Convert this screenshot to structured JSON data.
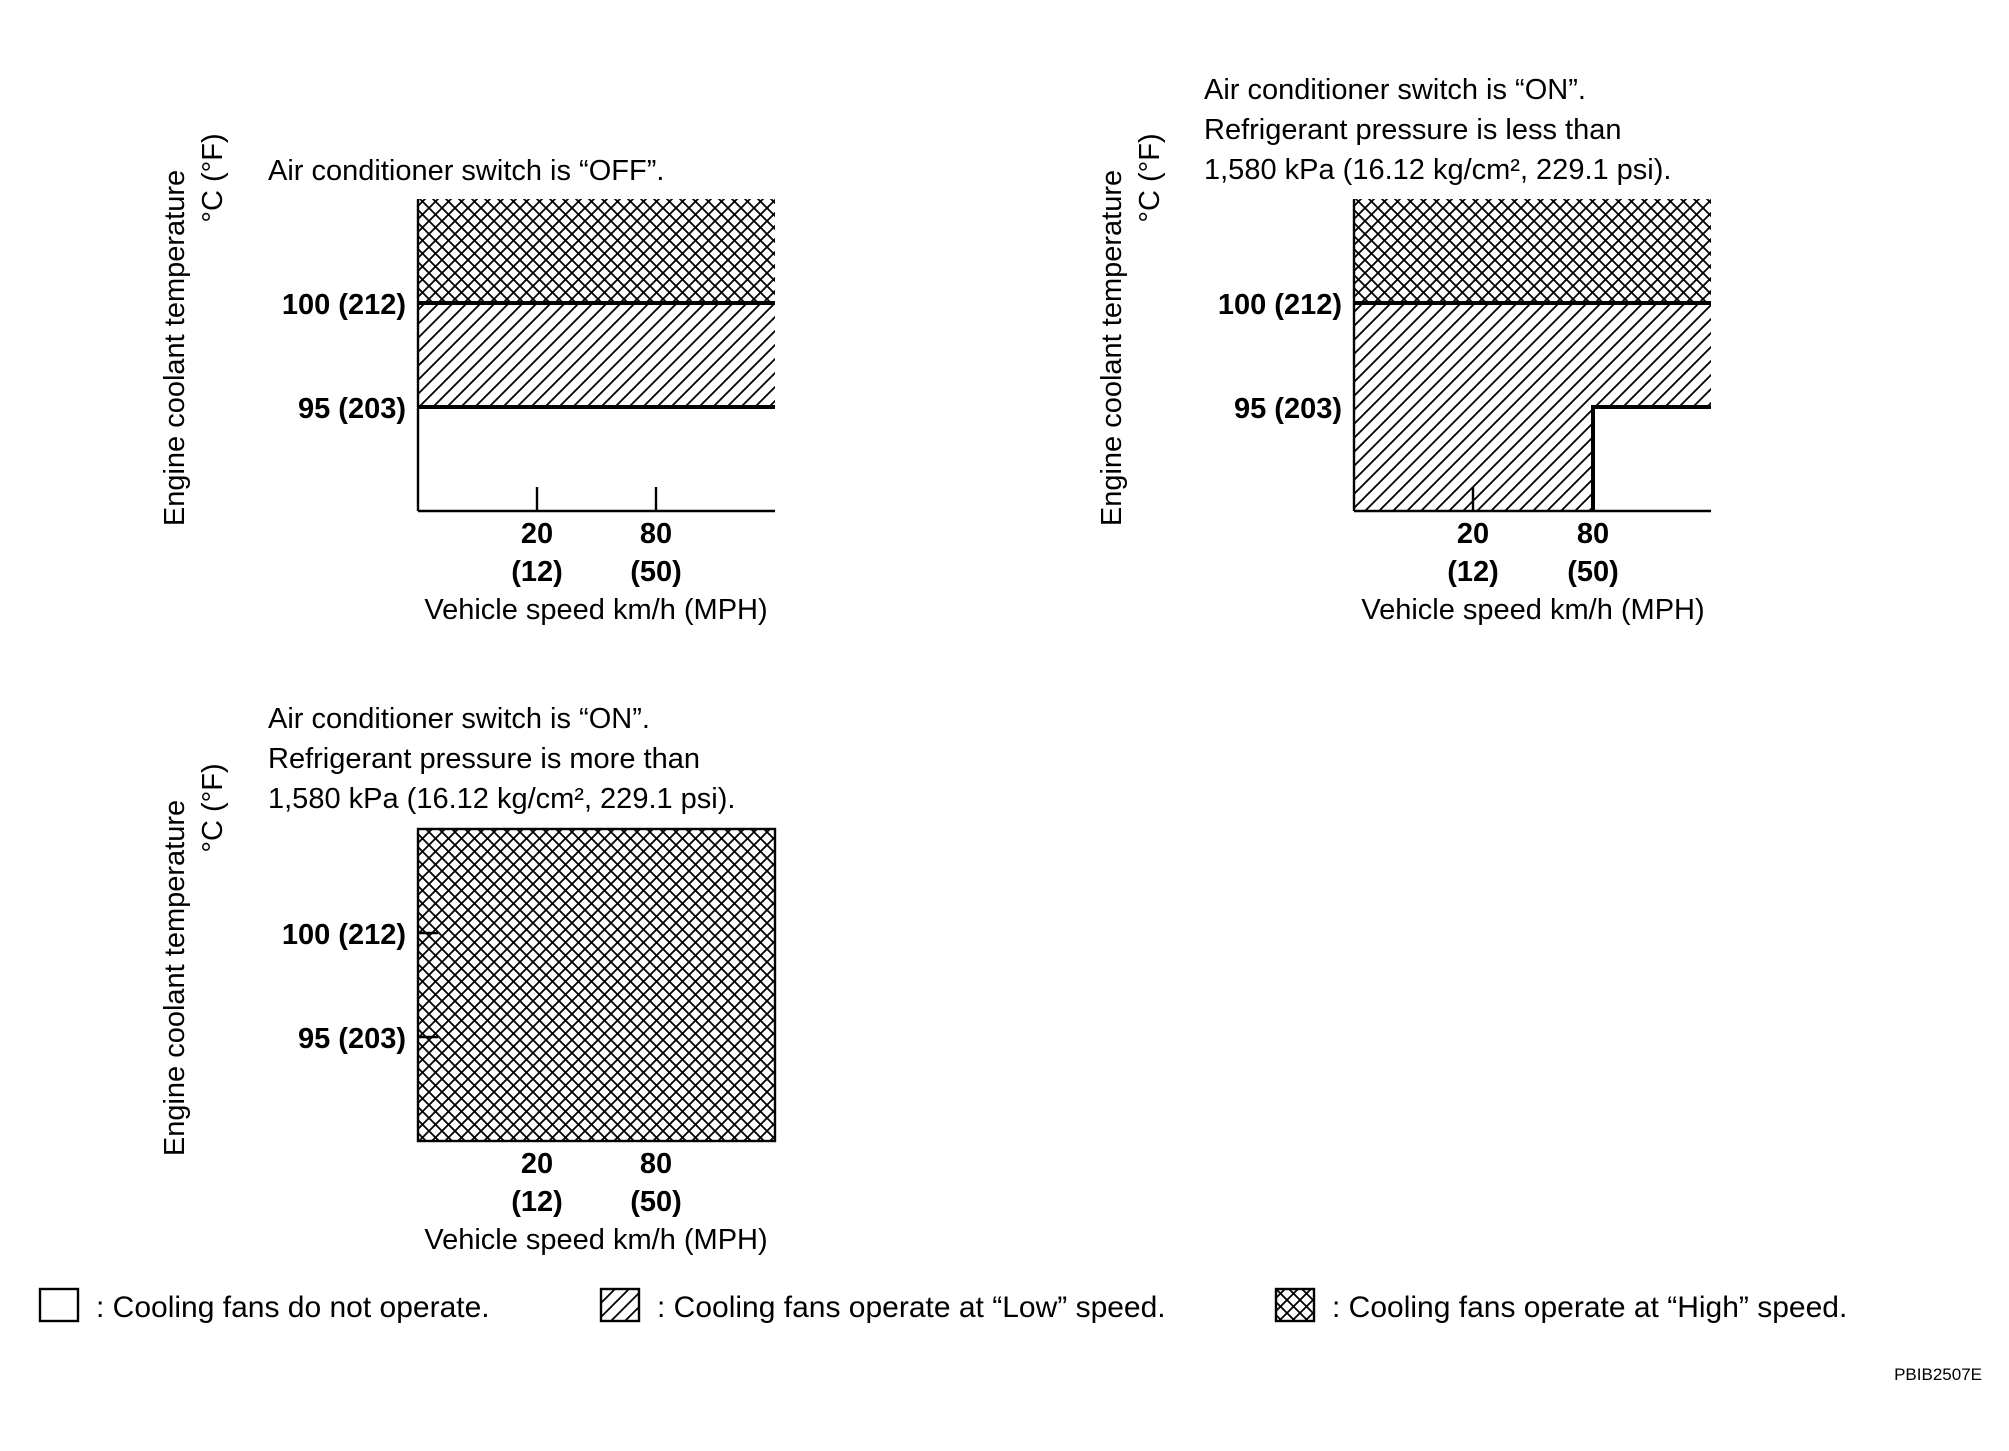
{
  "charts": [
    {
      "caption_lines": [
        "Air conditioner switch is “OFF”."
      ],
      "y_title": "Engine coolant temperature",
      "y_unit": "°C (°F)",
      "y_ticks": [
        "100 (212)",
        "95 (203)"
      ],
      "x_ticks": [
        {
          "value": "20",
          "mph": "(12)"
        },
        {
          "value": "80",
          "mph": "(50)"
        }
      ],
      "x_title": "Vehicle speed km/h (MPH)",
      "regions": [
        {
          "from_temp": 100,
          "to_temp": "max",
          "speed_from": 0,
          "speed_to": "max",
          "fan": "High"
        },
        {
          "from_temp": 95,
          "to_temp": 100,
          "speed_from": 0,
          "speed_to": "max",
          "fan": "Low"
        },
        {
          "from_temp": "min",
          "to_temp": 95,
          "speed_from": 0,
          "speed_to": "max",
          "fan": "Off"
        }
      ]
    },
    {
      "caption_lines": [
        "Air conditioner switch is “ON”.",
        "Refrigerant pressure is less than",
        "1,580 kPa (16.12 kg/cm², 229.1 psi)."
      ],
      "y_title": "Engine coolant temperature",
      "y_unit": "°C (°F)",
      "y_ticks": [
        "100 (212)",
        "95 (203)"
      ],
      "x_ticks": [
        {
          "value": "20",
          "mph": "(12)"
        },
        {
          "value": "80",
          "mph": "(50)"
        }
      ],
      "x_title": "Vehicle speed km/h (MPH)",
      "regions": [
        {
          "from_temp": 100,
          "to_temp": "max",
          "speed_from": 0,
          "speed_to": "max",
          "fan": "High"
        },
        {
          "from_temp": 95,
          "to_temp": 100,
          "speed_from": 0,
          "speed_to": "max",
          "fan": "Low"
        },
        {
          "from_temp": "min",
          "to_temp": 95,
          "speed_from": 0,
          "speed_to": 80,
          "fan": "Low"
        },
        {
          "from_temp": "min",
          "to_temp": 95,
          "speed_from": 80,
          "speed_to": "max",
          "fan": "Off"
        }
      ]
    },
    {
      "caption_lines": [
        "Air conditioner switch is “ON”.",
        "Refrigerant pressure is more than",
        "1,580 kPa (16.12 kg/cm², 229.1 psi)."
      ],
      "y_title": "Engine coolant temperature",
      "y_unit": "°C (°F)",
      "y_ticks": [
        "100 (212)",
        "95 (203)"
      ],
      "x_ticks": [
        {
          "value": "20",
          "mph": "(12)"
        },
        {
          "value": "80",
          "mph": "(50)"
        }
      ],
      "x_title": "Vehicle speed km/h (MPH)",
      "regions": [
        {
          "from_temp": "min",
          "to_temp": "max",
          "speed_from": 0,
          "speed_to": "max",
          "fan": "High"
        }
      ]
    }
  ],
  "legend": [
    {
      "pattern": "none",
      "label": ": Cooling fans do not operate."
    },
    {
      "pattern": "hatch",
      "label": ": Cooling fans operate at “Low” speed."
    },
    {
      "pattern": "cross",
      "label": ": Cooling fans operate at “High” speed."
    }
  ],
  "figure_code": "PBIB2507E"
}
